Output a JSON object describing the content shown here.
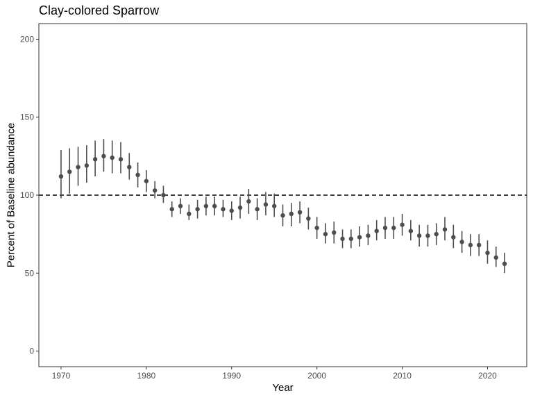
{
  "chart_data": {
    "type": "scatter",
    "title": "Clay-colored Sparrow",
    "xlabel": "Year",
    "ylabel": "Percent of Baseline abundance",
    "xlim": [
      1967.4,
      2024.6
    ],
    "ylim": [
      -10,
      210
    ],
    "xticks": [
      1970,
      1980,
      1990,
      2000,
      2010,
      2020
    ],
    "yticks": [
      0,
      50,
      100,
      150,
      200
    ],
    "reference_line": 100,
    "grid": false,
    "colors": {
      "points": "#4d4d4d",
      "errorbars": "#4d4d4d",
      "reference": "#000000",
      "frame": "#333333"
    },
    "series": [
      {
        "x": [
          1970,
          1971,
          1972,
          1973,
          1974,
          1975,
          1976,
          1977,
          1978,
          1979,
          1980,
          1981,
          1982,
          1983,
          1984,
          1985,
          1986,
          1987,
          1988,
          1989,
          1990,
          1991,
          1992,
          1993,
          1994,
          1995,
          1996,
          1997,
          1998,
          1999,
          2000,
          2001,
          2002,
          2003,
          2004,
          2005,
          2006,
          2007,
          2008,
          2009,
          2010,
          2011,
          2012,
          2013,
          2014,
          2015,
          2016,
          2017,
          2018,
          2019,
          2020,
          2021,
          2022
        ],
        "y": [
          112,
          115,
          118,
          119,
          123,
          125,
          124,
          123,
          118,
          113,
          109,
          103,
          100,
          91,
          93,
          88,
          91,
          93,
          93,
          91,
          90,
          92,
          96,
          91,
          94,
          93,
          87,
          88,
          89,
          85,
          79,
          75,
          76,
          72,
          72,
          73,
          74,
          77,
          79,
          79,
          81,
          77,
          74,
          74,
          75,
          78,
          73,
          70,
          68,
          68,
          63,
          60,
          56
        ],
        "lower": [
          98,
          101,
          106,
          108,
          112,
          115,
          114,
          114,
          110,
          105,
          102,
          98,
          95,
          86,
          88,
          84,
          85,
          87,
          87,
          86,
          84,
          85,
          88,
          84,
          87,
          86,
          80,
          80,
          82,
          78,
          72,
          69,
          69,
          66,
          66,
          67,
          68,
          71,
          72,
          72,
          74,
          71,
          67,
          67,
          68,
          71,
          66,
          63,
          61,
          61,
          56,
          54,
          50
        ],
        "upper": [
          129,
          130,
          131,
          132,
          135,
          136,
          135,
          134,
          127,
          121,
          116,
          109,
          106,
          96,
          98,
          94,
          97,
          99,
          99,
          97,
          96,
          99,
          104,
          98,
          102,
          101,
          94,
          95,
          96,
          92,
          86,
          82,
          83,
          78,
          78,
          80,
          81,
          84,
          86,
          86,
          88,
          84,
          81,
          81,
          82,
          86,
          81,
          77,
          75,
          75,
          71,
          67,
          63
        ]
      }
    ]
  }
}
